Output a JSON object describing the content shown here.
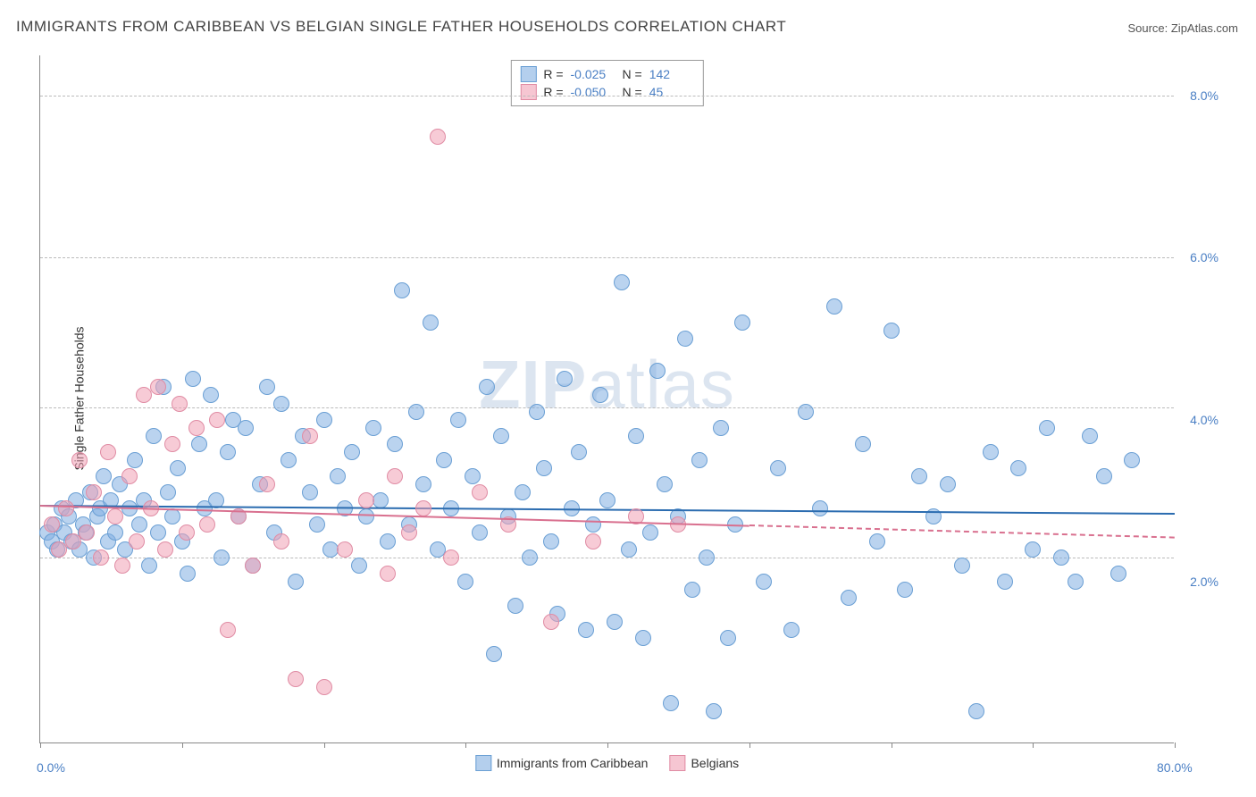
{
  "title": "IMMIGRANTS FROM CARIBBEAN VS BELGIAN SINGLE FATHER HOUSEHOLDS CORRELATION CHART",
  "source_label": "Source: ",
  "source_value": "ZipAtlas.com",
  "y_axis_label": "Single Father Households",
  "watermark": {
    "part1": "ZIP",
    "part2": "atlas"
  },
  "chart": {
    "type": "scatter",
    "xlim": [
      0,
      80
    ],
    "ylim": [
      0,
      8.5
    ],
    "x_ticks_minor": [
      0,
      10,
      20,
      30,
      40,
      50,
      60,
      70,
      80
    ],
    "x_tick_labels": [
      {
        "val": 0,
        "text": "0.0%"
      },
      {
        "val": 80,
        "text": "80.0%"
      }
    ],
    "y_gridlines": [
      2.3,
      4.15,
      6.0,
      8.0
    ],
    "y_tick_labels": [
      {
        "val": 2.0,
        "text": "2.0%"
      },
      {
        "val": 4.0,
        "text": "4.0%"
      },
      {
        "val": 6.0,
        "text": "6.0%"
      },
      {
        "val": 8.0,
        "text": "8.0%"
      }
    ],
    "background_color": "#ffffff",
    "grid_color": "#bbbbbb",
    "series": [
      {
        "name": "Immigrants from Caribbean",
        "color_fill": "rgba(130,175,225,0.55)",
        "color_stroke": "#6a9fd4",
        "marker_radius": 9,
        "trend": {
          "x0": 0,
          "y0": 2.95,
          "x1": 80,
          "y1": 2.85,
          "color": "#2b6cb0",
          "solid_until_x": 80
        },
        "stats": {
          "R": "-0.025",
          "N": "142"
        },
        "points": [
          [
            0.5,
            2.6
          ],
          [
            0.8,
            2.5
          ],
          [
            1.0,
            2.7
          ],
          [
            1.2,
            2.4
          ],
          [
            1.5,
            2.9
          ],
          [
            1.7,
            2.6
          ],
          [
            2.0,
            2.8
          ],
          [
            2.2,
            2.5
          ],
          [
            2.5,
            3.0
          ],
          [
            2.8,
            2.4
          ],
          [
            3.0,
            2.7
          ],
          [
            3.2,
            2.6
          ],
          [
            3.5,
            3.1
          ],
          [
            3.8,
            2.3
          ],
          [
            4.0,
            2.8
          ],
          [
            4.2,
            2.9
          ],
          [
            4.5,
            3.3
          ],
          [
            4.8,
            2.5
          ],
          [
            5.0,
            3.0
          ],
          [
            5.3,
            2.6
          ],
          [
            5.6,
            3.2
          ],
          [
            6.0,
            2.4
          ],
          [
            6.3,
            2.9
          ],
          [
            6.7,
            3.5
          ],
          [
            7.0,
            2.7
          ],
          [
            7.3,
            3.0
          ],
          [
            7.7,
            2.2
          ],
          [
            8.0,
            3.8
          ],
          [
            8.3,
            2.6
          ],
          [
            8.7,
            4.4
          ],
          [
            9.0,
            3.1
          ],
          [
            9.3,
            2.8
          ],
          [
            9.7,
            3.4
          ],
          [
            10.0,
            2.5
          ],
          [
            10.4,
            2.1
          ],
          [
            10.8,
            4.5
          ],
          [
            11.2,
            3.7
          ],
          [
            11.6,
            2.9
          ],
          [
            12.0,
            4.3
          ],
          [
            12.4,
            3.0
          ],
          [
            12.8,
            2.3
          ],
          [
            13.2,
            3.6
          ],
          [
            13.6,
            4.0
          ],
          [
            14.0,
            2.8
          ],
          [
            14.5,
            3.9
          ],
          [
            15.0,
            2.2
          ],
          [
            15.5,
            3.2
          ],
          [
            16.0,
            4.4
          ],
          [
            16.5,
            2.6
          ],
          [
            17.0,
            4.2
          ],
          [
            17.5,
            3.5
          ],
          [
            18.0,
            2.0
          ],
          [
            18.5,
            3.8
          ],
          [
            19.0,
            3.1
          ],
          [
            19.5,
            2.7
          ],
          [
            20.0,
            4.0
          ],
          [
            20.5,
            2.4
          ],
          [
            21.0,
            3.3
          ],
          [
            21.5,
            2.9
          ],
          [
            22.0,
            3.6
          ],
          [
            22.5,
            2.2
          ],
          [
            23.0,
            2.8
          ],
          [
            23.5,
            3.9
          ],
          [
            24.0,
            3.0
          ],
          [
            24.5,
            2.5
          ],
          [
            25.0,
            3.7
          ],
          [
            25.5,
            5.6
          ],
          [
            26.0,
            2.7
          ],
          [
            26.5,
            4.1
          ],
          [
            27.0,
            3.2
          ],
          [
            27.5,
            5.2
          ],
          [
            28.0,
            2.4
          ],
          [
            28.5,
            3.5
          ],
          [
            29.0,
            2.9
          ],
          [
            29.5,
            4.0
          ],
          [
            30.0,
            2.0
          ],
          [
            30.5,
            3.3
          ],
          [
            31.0,
            2.6
          ],
          [
            31.5,
            4.4
          ],
          [
            32.0,
            1.1
          ],
          [
            32.5,
            3.8
          ],
          [
            33.0,
            2.8
          ],
          [
            33.5,
            1.7
          ],
          [
            34.0,
            3.1
          ],
          [
            34.5,
            2.3
          ],
          [
            35.0,
            4.1
          ],
          [
            35.5,
            3.4
          ],
          [
            36.0,
            2.5
          ],
          [
            36.5,
            1.6
          ],
          [
            37.0,
            4.5
          ],
          [
            37.5,
            2.9
          ],
          [
            38.0,
            3.6
          ],
          [
            38.5,
            1.4
          ],
          [
            39.0,
            2.7
          ],
          [
            39.5,
            4.3
          ],
          [
            40.0,
            3.0
          ],
          [
            40.5,
            1.5
          ],
          [
            41.0,
            5.7
          ],
          [
            41.5,
            2.4
          ],
          [
            42.0,
            3.8
          ],
          [
            42.5,
            1.3
          ],
          [
            43.0,
            2.6
          ],
          [
            43.5,
            4.6
          ],
          [
            44.0,
            3.2
          ],
          [
            44.5,
            0.5
          ],
          [
            45.0,
            2.8
          ],
          [
            45.5,
            5.0
          ],
          [
            46.0,
            1.9
          ],
          [
            46.5,
            3.5
          ],
          [
            47.0,
            2.3
          ],
          [
            47.5,
            0.4
          ],
          [
            48.0,
            3.9
          ],
          [
            48.5,
            1.3
          ],
          [
            49.0,
            2.7
          ],
          [
            49.5,
            5.2
          ],
          [
            51.0,
            2.0
          ],
          [
            52.0,
            3.4
          ],
          [
            53.0,
            1.4
          ],
          [
            54.0,
            4.1
          ],
          [
            55.0,
            2.9
          ],
          [
            56.0,
            5.4
          ],
          [
            57.0,
            1.8
          ],
          [
            58.0,
            3.7
          ],
          [
            59.0,
            2.5
          ],
          [
            60.0,
            5.1
          ],
          [
            61.0,
            1.9
          ],
          [
            62.0,
            3.3
          ],
          [
            63.0,
            2.8
          ],
          [
            64.0,
            3.2
          ],
          [
            65.0,
            2.2
          ],
          [
            66.0,
            0.4
          ],
          [
            67.0,
            3.6
          ],
          [
            68.0,
            2.0
          ],
          [
            69.0,
            3.4
          ],
          [
            70.0,
            2.4
          ],
          [
            71.0,
            3.9
          ],
          [
            72.0,
            2.3
          ],
          [
            73.0,
            2.0
          ],
          [
            74.0,
            3.8
          ],
          [
            75.0,
            3.3
          ],
          [
            76.0,
            2.1
          ],
          [
            77.0,
            3.5
          ]
        ]
      },
      {
        "name": "Belgians",
        "color_fill": "rgba(240,160,180,0.55)",
        "color_stroke": "#e08ca4",
        "marker_radius": 9,
        "trend": {
          "x0": 0,
          "y0": 2.95,
          "x1": 80,
          "y1": 2.55,
          "color": "#d9708f",
          "solid_until_x": 50
        },
        "stats": {
          "R": "-0.050",
          "N": "45"
        },
        "points": [
          [
            0.8,
            2.7
          ],
          [
            1.3,
            2.4
          ],
          [
            1.8,
            2.9
          ],
          [
            2.3,
            2.5
          ],
          [
            2.8,
            3.5
          ],
          [
            3.3,
            2.6
          ],
          [
            3.8,
            3.1
          ],
          [
            4.3,
            2.3
          ],
          [
            4.8,
            3.6
          ],
          [
            5.3,
            2.8
          ],
          [
            5.8,
            2.2
          ],
          [
            6.3,
            3.3
          ],
          [
            6.8,
            2.5
          ],
          [
            7.3,
            4.3
          ],
          [
            7.8,
            2.9
          ],
          [
            8.3,
            4.4
          ],
          [
            8.8,
            2.4
          ],
          [
            9.3,
            3.7
          ],
          [
            9.8,
            4.2
          ],
          [
            10.3,
            2.6
          ],
          [
            11.0,
            3.9
          ],
          [
            11.8,
            2.7
          ],
          [
            12.5,
            4.0
          ],
          [
            13.2,
            1.4
          ],
          [
            14.0,
            2.8
          ],
          [
            15.0,
            2.2
          ],
          [
            16.0,
            3.2
          ],
          [
            17.0,
            2.5
          ],
          [
            18.0,
            0.8
          ],
          [
            19.0,
            3.8
          ],
          [
            20.0,
            0.7
          ],
          [
            21.5,
            2.4
          ],
          [
            23.0,
            3.0
          ],
          [
            24.5,
            2.1
          ],
          [
            25.0,
            3.3
          ],
          [
            26.0,
            2.6
          ],
          [
            27.0,
            2.9
          ],
          [
            28.0,
            7.5
          ],
          [
            29.0,
            2.3
          ],
          [
            31.0,
            3.1
          ],
          [
            33.0,
            2.7
          ],
          [
            36.0,
            1.5
          ],
          [
            39.0,
            2.5
          ],
          [
            42.0,
            2.8
          ],
          [
            45.0,
            2.7
          ]
        ]
      }
    ]
  },
  "stats_box": {
    "rows": [
      {
        "swatch_fill": "rgba(130,175,225,0.6)",
        "swatch_border": "#6a9fd4",
        "R_label": "R =",
        "R_val": "-0.025",
        "N_label": "N =",
        "N_val": "142"
      },
      {
        "swatch_fill": "rgba(240,160,180,0.6)",
        "swatch_border": "#e08ca4",
        "R_label": "R =",
        "R_val": "-0.050",
        "N_label": "N =",
        "N_val": "45"
      }
    ]
  },
  "bottom_legend": [
    {
      "swatch_fill": "rgba(130,175,225,0.6)",
      "swatch_border": "#6a9fd4",
      "label": "Immigrants from Caribbean"
    },
    {
      "swatch_fill": "rgba(240,160,180,0.6)",
      "swatch_border": "#e08ca4",
      "label": "Belgians"
    }
  ]
}
